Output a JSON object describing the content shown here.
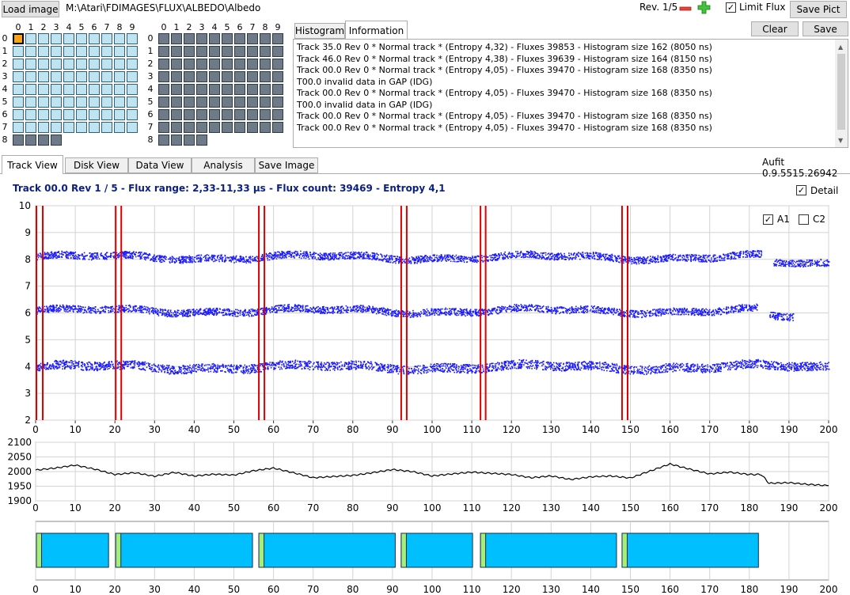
{
  "toolbar": {
    "load_label": "Load image",
    "path": "M:\\Atari\\FDIMAGES\\FLUX\\ALBEDO\\Albedo",
    "rev_label": "Rev. 1/5",
    "limit_flux_label": "Limit Flux",
    "limit_flux_checked": true,
    "save_pict_label": "Save Pict",
    "minus_icon": "minus-icon",
    "plus_icon": "plus-icon"
  },
  "grid": {
    "col_labels": [
      "0",
      "1",
      "2",
      "3",
      "4",
      "5",
      "6",
      "7",
      "8",
      "9"
    ],
    "row_labels": [
      "0",
      "1",
      "2",
      "3",
      "4",
      "5",
      "6",
      "7",
      "8"
    ],
    "side0_color": "#bfe3ef",
    "side1_color": "#6f7a89",
    "selected_color": "#f7a31c",
    "selected_track": "0"
  },
  "info": {
    "tabs": [
      "Histogram",
      "Information"
    ],
    "active_tab": "Information",
    "clear_label": "Clear",
    "save_label": "Save",
    "lines": [
      "Track 35.0 Rev 0 * Normal track * (Entropy 4,32) - Fluxes 39853 - Histogram size 162 (8050 ns)",
      "Track 46.0 Rev 0 * Normal track * (Entropy 4,38) - Fluxes 39639 - Histogram size 164 (8150 ns)",
      "Track 00.0 Rev 0 * Normal track * (Entropy 4,05) - Fluxes 39470 - Histogram size 168 (8350 ns)",
      "T00.0 invalid data in GAP (IDG)",
      "Track 00.0 Rev 0 * Normal track * (Entropy 4,05) - Fluxes 39470 - Histogram size 168 (8350 ns)",
      "T00.0 invalid data in GAP (IDG)",
      "Track 00.0 Rev 0 * Normal track * (Entropy 4,05) - Fluxes 39470 - Histogram size 168 (8350 ns)",
      "Track 00.0 Rev 0 * Normal track * (Entropy 4,05) - Fluxes 39470 - Histogram size 168 (8350 ns)"
    ]
  },
  "tabs": {
    "items": [
      "Track View",
      "Disk View",
      "Data View",
      "Analysis",
      "Save Image"
    ],
    "active": "Track View"
  },
  "version": "Aufit 0.9.5515.26942",
  "track_view": {
    "title": "Track 00.0 Rev 1 / 5 - Flux range: 2,33-11,33 µs - Flux count: 39469 - Entropy 4,1",
    "detail_label": "Detail",
    "detail_checked": true,
    "a1_label": "A1",
    "a1_checked": true,
    "c2_label": "C2",
    "c2_checked": false
  },
  "chart_data": [
    {
      "type": "scatter",
      "title": "",
      "xlabel": "",
      "ylabel": "",
      "xlim": [
        0,
        200
      ],
      "ylim": [
        2,
        10
      ],
      "xticks": [
        0,
        10,
        20,
        30,
        40,
        50,
        60,
        70,
        80,
        90,
        100,
        110,
        120,
        130,
        140,
        150,
        160,
        170,
        180,
        190,
        200
      ],
      "yticks": [
        2,
        3,
        4,
        5,
        6,
        7,
        8,
        9,
        10
      ],
      "grid": true,
      "point_color": "#1a1aff",
      "marker_color": "#e00000",
      "bands": [
        {
          "center": 4.0,
          "x_range": [
            0,
            200
          ]
        },
        {
          "center": 6.1,
          "x_range": [
            0,
            182
          ]
        },
        {
          "center": 5.85,
          "x_range": [
            185,
            191
          ]
        },
        {
          "center": 8.1,
          "x_range": [
            0,
            183
          ]
        },
        {
          "center": 7.85,
          "x_range": [
            186,
            200
          ]
        }
      ],
      "marker_pairs": [
        [
          0.2,
          1.8
        ],
        [
          20.2,
          21.6
        ],
        [
          56.3,
          57.7
        ],
        [
          92.2,
          93.6
        ],
        [
          112.2,
          113.5
        ],
        [
          147.9,
          149.3
        ]
      ]
    },
    {
      "type": "line",
      "title": "",
      "xlim": [
        0,
        200
      ],
      "ylim": [
        1900,
        2100
      ],
      "yticks": [
        1900,
        1950,
        2000,
        2050,
        2100
      ],
      "grid": true,
      "line_color": "#000000",
      "x": [
        0,
        5,
        10,
        15,
        20,
        25,
        30,
        35,
        40,
        45,
        50,
        55,
        60,
        65,
        70,
        75,
        80,
        85,
        90,
        95,
        100,
        105,
        110,
        115,
        120,
        125,
        130,
        135,
        140,
        145,
        150,
        155,
        160,
        165,
        170,
        175,
        180,
        183,
        185,
        190,
        195,
        200
      ],
      "values": [
        2005,
        2012,
        2022,
        2008,
        1990,
        1996,
        1984,
        1997,
        1985,
        1991,
        1988,
        2003,
        2012,
        1996,
        1979,
        1983,
        1987,
        1996,
        2007,
        2000,
        1985,
        1992,
        1998,
        1994,
        1990,
        1979,
        1985,
        1973,
        1982,
        1985,
        1978,
        2002,
        2026,
        2008,
        1992,
        1998,
        1990,
        1990,
        1960,
        1962,
        1956,
        1952
      ]
    },
    {
      "type": "bar",
      "title": "",
      "xlim": [
        0,
        200
      ],
      "xticks": [
        0,
        10,
        20,
        30,
        40,
        50,
        60,
        70,
        80,
        90,
        100,
        110,
        120,
        130,
        140,
        150,
        160,
        170,
        180,
        190,
        200
      ],
      "segment_color": "#00bfff",
      "header_color": "#a4ee7c",
      "segments": [
        [
          0.2,
          18.4
        ],
        [
          20.2,
          54.7
        ],
        [
          56.3,
          90.7
        ],
        [
          92.2,
          110.2
        ],
        [
          112.2,
          146.5
        ],
        [
          147.9,
          182.3
        ]
      ],
      "header_width": 1.3
    }
  ]
}
